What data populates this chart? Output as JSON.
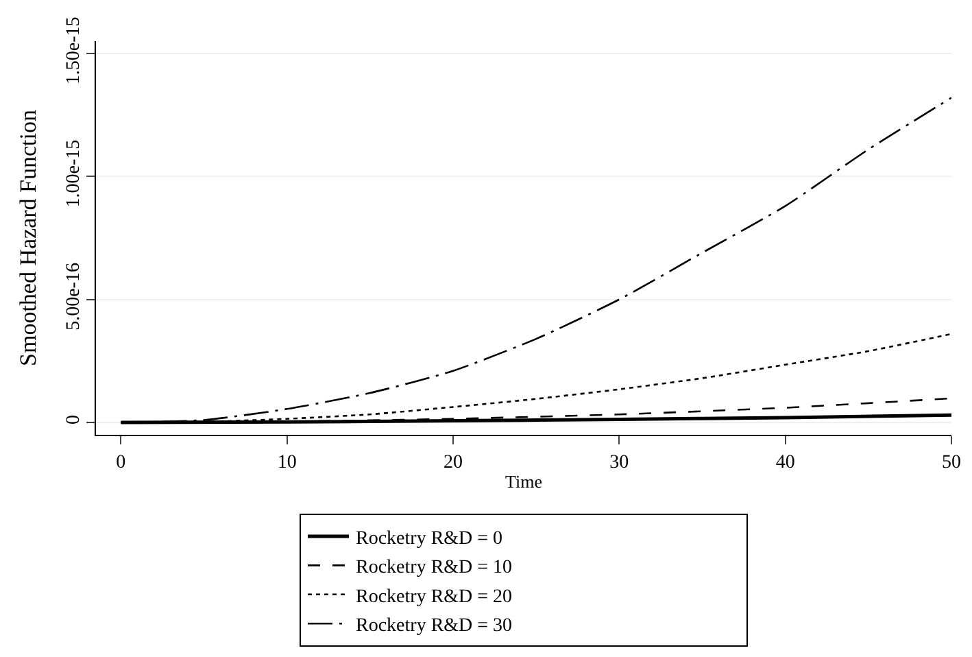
{
  "chart_data": {
    "type": "line",
    "xlabel": "Time",
    "ylabel": "Smoothed Hazard Function",
    "xlim": [
      -1.5,
      50
    ],
    "xticks": [
      0,
      10,
      20,
      30,
      40,
      50
    ],
    "ylim": [
      -5e-17,
      1.55e-15
    ],
    "yticks": [
      0,
      {
        "value": 5e-16,
        "label": "5.00e-16"
      },
      {
        "value": 1e-15,
        "label": "1.00e-15"
      },
      {
        "value": 1.5e-15,
        "label": "1.50e-15"
      }
    ],
    "grid": "y",
    "legend": "bottom",
    "series": [
      {
        "name": "Rocketry R&D = 0",
        "color": "#000000",
        "line_style": "solid",
        "x": [
          0,
          10,
          20,
          30,
          40,
          50
        ],
        "values": [
          0,
          2e-18,
          7e-18,
          1.3e-17,
          2e-17,
          3e-17
        ]
      },
      {
        "name": "Rocketry R&D = 10",
        "color": "#000000",
        "line_style": "dashed",
        "x": [
          0,
          10,
          20,
          30,
          40,
          50
        ],
        "values": [
          0,
          4e-18,
          1.5e-17,
          3.3e-17,
          6e-17,
          9.8e-17
        ]
      },
      {
        "name": "Rocketry R&D = 20",
        "color": "#000000",
        "line_style": "dotted",
        "x": [
          0,
          5,
          10,
          15,
          20,
          25,
          30,
          35,
          40,
          45,
          50
        ],
        "values": [
          0,
          3e-18,
          1.5e-17,
          3.3e-17,
          6.3e-17,
          9.6e-17,
          1.35e-16,
          1.8e-16,
          2.35e-16,
          2.9e-16,
          3.6e-16
        ]
      },
      {
        "name": "Rocketry R&D = 30",
        "color": "#000000",
        "line_style": "dashdot",
        "x": [
          0,
          5,
          10,
          15,
          20,
          25,
          30,
          35,
          40,
          45,
          50
        ],
        "values": [
          0,
          1e-17,
          5.5e-17,
          1.2e-16,
          2.1e-16,
          3.4e-16,
          5e-16,
          6.9e-16,
          8.8e-16,
          1.11e-15,
          1.32e-15
        ]
      }
    ]
  }
}
